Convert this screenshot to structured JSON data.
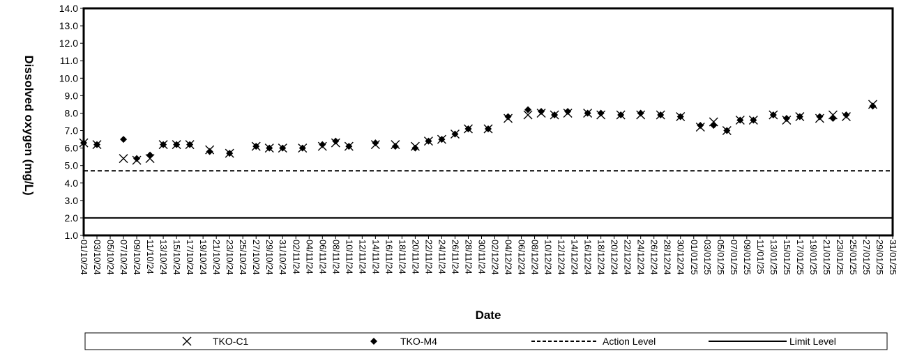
{
  "chart_data": {
    "type": "scatter",
    "title": "",
    "xlabel": "Date",
    "ylabel": "Dissolved oxygen (mg/L)",
    "ylim": [
      1.0,
      14.0
    ],
    "ytick_step": 1.0,
    "xlim": [
      "2024-10-01",
      "2025-01-31"
    ],
    "x_tick_labels": [
      "01/10/24",
      "03/10/24",
      "05/10/24",
      "07/10/24",
      "09/10/24",
      "11/10/24",
      "13/10/24",
      "15/10/24",
      "17/10/24",
      "19/10/24",
      "21/10/24",
      "23/10/24",
      "25/10/24",
      "27/10/24",
      "29/10/24",
      "31/10/24",
      "02/11/24",
      "04/11/24",
      "06/11/24",
      "08/11/24",
      "10/11/24",
      "12/11/24",
      "14/11/24",
      "16/11/24",
      "18/11/24",
      "20/11/24",
      "22/11/24",
      "24/11/24",
      "26/11/24",
      "28/11/24",
      "30/11/24",
      "02/12/24",
      "04/12/24",
      "06/12/24",
      "08/12/24",
      "10/12/24",
      "12/12/24",
      "14/12/24",
      "16/12/24",
      "18/12/24",
      "20/12/24",
      "22/12/24",
      "24/12/24",
      "26/12/24",
      "28/12/24",
      "30/12/24",
      "01/01/25",
      "03/01/25",
      "05/01/25",
      "07/01/25",
      "09/01/25",
      "11/01/25",
      "13/01/25",
      "15/01/25",
      "17/01/25",
      "19/01/25",
      "21/01/25",
      "23/01/25",
      "25/01/25",
      "27/01/25",
      "29/01/25",
      "31/01/25"
    ],
    "grid": false,
    "legend_position": "bottom",
    "series": [
      {
        "name": "TKO-C1",
        "marker": "x",
        "color": "#000000",
        "points": [
          [
            "2024-10-01",
            6.3
          ],
          [
            "2024-10-03",
            6.2
          ],
          [
            "2024-10-07",
            5.4
          ],
          [
            "2024-10-09",
            5.3
          ],
          [
            "2024-10-11",
            5.4
          ],
          [
            "2024-10-13",
            6.2
          ],
          [
            "2024-10-15",
            6.2
          ],
          [
            "2024-10-17",
            6.2
          ],
          [
            "2024-10-20",
            5.9
          ],
          [
            "2024-10-23",
            5.7
          ],
          [
            "2024-10-27",
            6.1
          ],
          [
            "2024-10-29",
            6.0
          ],
          [
            "2024-10-31",
            6.0
          ],
          [
            "2024-11-03",
            6.0
          ],
          [
            "2024-11-06",
            6.1
          ],
          [
            "2024-11-08",
            6.3
          ],
          [
            "2024-11-10",
            6.1
          ],
          [
            "2024-11-14",
            6.2
          ],
          [
            "2024-11-17",
            6.2
          ],
          [
            "2024-11-20",
            6.1
          ],
          [
            "2024-11-22",
            6.4
          ],
          [
            "2024-11-24",
            6.5
          ],
          [
            "2024-11-26",
            6.8
          ],
          [
            "2024-11-28",
            7.1
          ],
          [
            "2024-12-01",
            7.1
          ],
          [
            "2024-12-04",
            7.7
          ],
          [
            "2024-12-07",
            7.9
          ],
          [
            "2024-12-09",
            8.0
          ],
          [
            "2024-12-11",
            7.9
          ],
          [
            "2024-12-13",
            8.0
          ],
          [
            "2024-12-16",
            8.0
          ],
          [
            "2024-12-18",
            7.9
          ],
          [
            "2024-12-21",
            7.9
          ],
          [
            "2024-12-24",
            7.9
          ],
          [
            "2024-12-27",
            7.9
          ],
          [
            "2024-12-30",
            7.8
          ],
          [
            "2025-01-02",
            7.2
          ],
          [
            "2025-01-04",
            7.5
          ],
          [
            "2025-01-06",
            7.0
          ],
          [
            "2025-01-08",
            7.6
          ],
          [
            "2025-01-10",
            7.6
          ],
          [
            "2025-01-13",
            7.9
          ],
          [
            "2025-01-15",
            7.6
          ],
          [
            "2025-01-17",
            7.8
          ],
          [
            "2025-01-20",
            7.7
          ],
          [
            "2025-01-22",
            7.9
          ],
          [
            "2025-01-24",
            7.8
          ],
          [
            "2025-01-28",
            8.5
          ]
        ]
      },
      {
        "name": "TKO-M4",
        "marker": "diamond",
        "color": "#000000",
        "points": [
          [
            "2024-10-01",
            6.3
          ],
          [
            "2024-10-03",
            6.2
          ],
          [
            "2024-10-07",
            6.5
          ],
          [
            "2024-10-09",
            5.4
          ],
          [
            "2024-10-11",
            5.6
          ],
          [
            "2024-10-13",
            6.2
          ],
          [
            "2024-10-15",
            6.2
          ],
          [
            "2024-10-17",
            6.2
          ],
          [
            "2024-10-20",
            5.8
          ],
          [
            "2024-10-23",
            5.7
          ],
          [
            "2024-10-27",
            6.1
          ],
          [
            "2024-10-29",
            6.0
          ],
          [
            "2024-10-31",
            6.0
          ],
          [
            "2024-11-03",
            6.0
          ],
          [
            "2024-11-06",
            6.2
          ],
          [
            "2024-11-08",
            6.4
          ],
          [
            "2024-11-10",
            6.1
          ],
          [
            "2024-11-14",
            6.3
          ],
          [
            "2024-11-17",
            6.1
          ],
          [
            "2024-11-20",
            6.0
          ],
          [
            "2024-11-22",
            6.4
          ],
          [
            "2024-11-24",
            6.5
          ],
          [
            "2024-11-26",
            6.8
          ],
          [
            "2024-11-28",
            7.1
          ],
          [
            "2024-12-01",
            7.1
          ],
          [
            "2024-12-04",
            7.8
          ],
          [
            "2024-12-07",
            8.2
          ],
          [
            "2024-12-09",
            8.1
          ],
          [
            "2024-12-11",
            7.9
          ],
          [
            "2024-12-13",
            8.1
          ],
          [
            "2024-12-16",
            8.0
          ],
          [
            "2024-12-18",
            8.0
          ],
          [
            "2024-12-21",
            7.9
          ],
          [
            "2024-12-24",
            8.0
          ],
          [
            "2024-12-27",
            7.9
          ],
          [
            "2024-12-30",
            7.8
          ],
          [
            "2025-01-02",
            7.3
          ],
          [
            "2025-01-04",
            7.3
          ],
          [
            "2025-01-06",
            7.0
          ],
          [
            "2025-01-08",
            7.6
          ],
          [
            "2025-01-10",
            7.6
          ],
          [
            "2025-01-13",
            7.9
          ],
          [
            "2025-01-15",
            7.7
          ],
          [
            "2025-01-17",
            7.8
          ],
          [
            "2025-01-20",
            7.8
          ],
          [
            "2025-01-22",
            7.7
          ],
          [
            "2025-01-24",
            7.9
          ],
          [
            "2025-01-28",
            8.4
          ]
        ]
      }
    ],
    "reference_lines": [
      {
        "name": "Action Level",
        "value": 4.7,
        "style": "dashed"
      },
      {
        "name": "Limit Level",
        "value": 2.0,
        "style": "solid"
      }
    ]
  }
}
